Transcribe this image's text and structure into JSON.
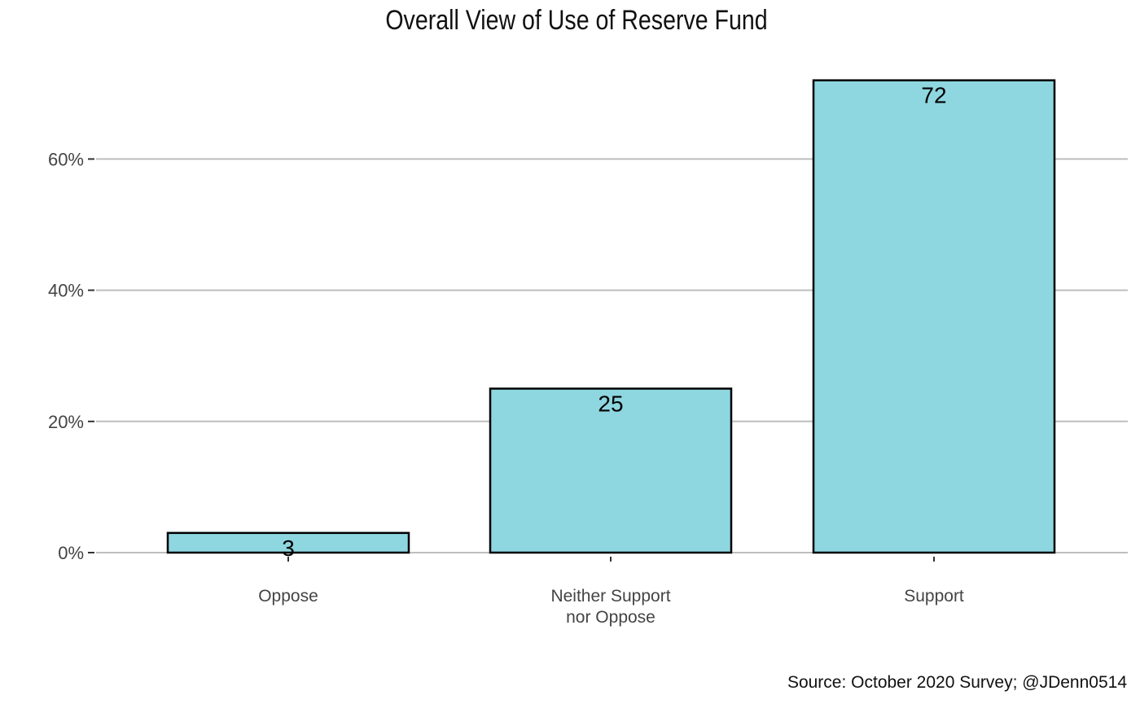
{
  "chart_data": {
    "type": "bar",
    "title": "Overall View of Use of Reserve Fund",
    "xlabel": "",
    "ylabel": "",
    "categories": [
      "Oppose",
      "Neither Support nor Oppose",
      "Support"
    ],
    "category_lines": [
      [
        "Oppose"
      ],
      [
        "Neither Support",
        "nor Oppose"
      ],
      [
        "Support"
      ]
    ],
    "values": [
      3,
      25,
      72
    ],
    "data_labels": [
      "3",
      "25",
      "72"
    ],
    "yticks": [
      0,
      20,
      40,
      60
    ],
    "ytick_labels": [
      "0%",
      "20%",
      "40%",
      "60%"
    ],
    "ylim": [
      0,
      72
    ],
    "bar_color": "#8ED6E0",
    "bar_outline": "#000000",
    "grid_color": "#BEBEBE",
    "grid": "horizontal",
    "caption": "Source: October 2020 Survey; @JDenn0514"
  }
}
